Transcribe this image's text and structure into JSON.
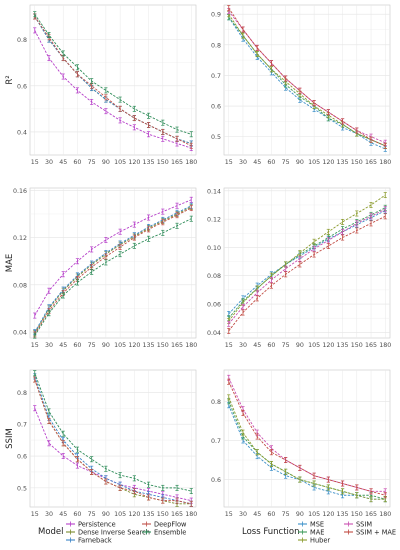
{
  "colors": {
    "Persistence": "#b63fc9",
    "Dense Inverse Search": "#7a8b2d",
    "Farneback": "#3a83c7",
    "DeepFlow": "#c0514a",
    "Ensemble": "#2f8c59",
    "MSE": "#3a8fc8",
    "MAE": "#3d9a5a",
    "Huber": "#8a9a2c",
    "SSIM": "#c94fb0",
    "SSIM + MAE": "#c14a42"
  },
  "legend": {
    "left_title": "Model",
    "left_items": [
      "Persistence",
      "Dense Inverse Search",
      "Farneback",
      "DeepFlow",
      "Ensemble"
    ],
    "right_title": "Loss Function",
    "right_items": [
      "MSE",
      "MAE",
      "Huber",
      "SSIM",
      "SSIM + MAE"
    ]
  },
  "chart_data": [
    {
      "type": "line",
      "panel": "r2-model",
      "ylabel": "R²",
      "ylim": [
        0.3,
        0.95
      ],
      "yticks": [
        "0.4",
        "0.6",
        "0.8"
      ],
      "ytick_values": [
        0.4,
        0.6,
        0.8
      ],
      "x": [
        15,
        30,
        45,
        60,
        75,
        90,
        105,
        120,
        135,
        150,
        165,
        180
      ],
      "xtick_labels": [
        "15",
        "30",
        "45",
        "60",
        "75",
        "90",
        "105",
        "120",
        "135",
        "150",
        "165",
        "180"
      ],
      "grid": true,
      "series": [
        {
          "name": "Persistence",
          "values": [
            0.84,
            0.72,
            0.64,
            0.58,
            0.53,
            0.49,
            0.45,
            0.42,
            0.39,
            0.37,
            0.35,
            0.33
          ]
        },
        {
          "name": "Dense Inverse Search",
          "values": [
            0.9,
            0.8,
            0.72,
            0.65,
            0.59,
            0.54,
            0.5,
            0.46,
            0.43,
            0.4,
            0.37,
            0.35
          ]
        },
        {
          "name": "Farneback",
          "values": [
            0.9,
            0.8,
            0.72,
            0.65,
            0.59,
            0.54,
            0.5,
            0.46,
            0.43,
            0.4,
            0.37,
            0.35
          ]
        },
        {
          "name": "DeepFlow",
          "values": [
            0.9,
            0.81,
            0.72,
            0.65,
            0.6,
            0.55,
            0.5,
            0.46,
            0.43,
            0.4,
            0.37,
            0.34
          ]
        },
        {
          "name": "Ensemble",
          "values": [
            0.91,
            0.82,
            0.74,
            0.68,
            0.62,
            0.58,
            0.54,
            0.5,
            0.47,
            0.44,
            0.41,
            0.39
          ]
        }
      ]
    },
    {
      "type": "line",
      "panel": "r2-loss",
      "ylabel": "",
      "ylim": [
        0.44,
        0.93
      ],
      "yticks": [
        "0.5",
        "0.6",
        "0.7",
        "0.8",
        "0.9"
      ],
      "ytick_values": [
        0.5,
        0.6,
        0.7,
        0.8,
        0.9
      ],
      "x": [
        15,
        30,
        45,
        60,
        75,
        90,
        105,
        120,
        135,
        150,
        165,
        180
      ],
      "xtick_labels": [
        "15",
        "30",
        "45",
        "60",
        "75",
        "90",
        "105",
        "120",
        "135",
        "150",
        "165",
        "180"
      ],
      "grid": true,
      "series": [
        {
          "name": "MSE",
          "values": [
            0.89,
            0.82,
            0.76,
            0.71,
            0.66,
            0.62,
            0.59,
            0.56,
            0.53,
            0.51,
            0.48,
            0.46
          ]
        },
        {
          "name": "MAE",
          "values": [
            0.89,
            0.83,
            0.77,
            0.72,
            0.67,
            0.63,
            0.6,
            0.56,
            0.54,
            0.51,
            0.49,
            0.47
          ]
        },
        {
          "name": "Huber",
          "values": [
            0.9,
            0.83,
            0.77,
            0.72,
            0.68,
            0.64,
            0.6,
            0.57,
            0.54,
            0.51,
            0.49,
            0.47
          ]
        },
        {
          "name": "SSIM",
          "values": [
            0.91,
            0.85,
            0.79,
            0.74,
            0.69,
            0.65,
            0.61,
            0.58,
            0.55,
            0.52,
            0.5,
            0.48
          ]
        },
        {
          "name": "SSIM + MAE",
          "values": [
            0.92,
            0.85,
            0.79,
            0.74,
            0.69,
            0.65,
            0.61,
            0.58,
            0.55,
            0.52,
            0.49,
            0.47
          ]
        }
      ]
    },
    {
      "type": "line",
      "panel": "mae-model",
      "ylabel": "MAE",
      "ylim": [
        0.035,
        0.162
      ],
      "yticks": [
        "0.04",
        "0.08",
        "0.12",
        "0.16"
      ],
      "ytick_values": [
        0.04,
        0.08,
        0.12,
        0.16
      ],
      "x": [
        15,
        30,
        45,
        60,
        75,
        90,
        105,
        120,
        135,
        150,
        165,
        180
      ],
      "xtick_labels": [
        "15",
        "30",
        "45",
        "60",
        "75",
        "90",
        "105",
        "120",
        "135",
        "150",
        "165",
        "180"
      ],
      "grid": true,
      "series": [
        {
          "name": "Persistence",
          "values": [
            0.054,
            0.075,
            0.089,
            0.1,
            0.11,
            0.118,
            0.125,
            0.131,
            0.137,
            0.142,
            0.147,
            0.152
          ]
        },
        {
          "name": "Dense Inverse Search",
          "values": [
            0.039,
            0.06,
            0.075,
            0.087,
            0.097,
            0.106,
            0.114,
            0.121,
            0.128,
            0.134,
            0.14,
            0.146
          ]
        },
        {
          "name": "Farneback",
          "values": [
            0.04,
            0.061,
            0.076,
            0.088,
            0.098,
            0.107,
            0.115,
            0.122,
            0.129,
            0.135,
            0.141,
            0.147
          ]
        },
        {
          "name": "DeepFlow",
          "values": [
            0.038,
            0.058,
            0.073,
            0.085,
            0.095,
            0.104,
            0.112,
            0.12,
            0.127,
            0.133,
            0.139,
            0.145
          ]
        },
        {
          "name": "Ensemble",
          "values": [
            0.037,
            0.056,
            0.071,
            0.082,
            0.091,
            0.099,
            0.106,
            0.113,
            0.119,
            0.124,
            0.13,
            0.136
          ]
        }
      ]
    },
    {
      "type": "line",
      "panel": "mae-loss",
      "ylabel": "",
      "ylim": [
        0.036,
        0.142
      ],
      "yticks": [
        "0.04",
        "0.06",
        "0.08",
        "0.10",
        "0.12",
        "0.14"
      ],
      "ytick_values": [
        0.04,
        0.06,
        0.08,
        0.1,
        0.12,
        0.14
      ],
      "x": [
        15,
        30,
        45,
        60,
        75,
        90,
        105,
        120,
        135,
        150,
        165,
        180
      ],
      "xtick_labels": [
        "15",
        "30",
        "45",
        "60",
        "75",
        "90",
        "105",
        "120",
        "135",
        "150",
        "165",
        "180"
      ],
      "grid": true,
      "series": [
        {
          "name": "MSE",
          "values": [
            0.053,
            0.064,
            0.073,
            0.081,
            0.088,
            0.094,
            0.1,
            0.106,
            0.111,
            0.116,
            0.121,
            0.126
          ]
        },
        {
          "name": "MAE",
          "values": [
            0.05,
            0.062,
            0.071,
            0.08,
            0.088,
            0.095,
            0.101,
            0.107,
            0.113,
            0.118,
            0.123,
            0.128
          ]
        },
        {
          "name": "Huber",
          "values": [
            0.048,
            0.061,
            0.071,
            0.08,
            0.088,
            0.096,
            0.104,
            0.111,
            0.118,
            0.124,
            0.13,
            0.137
          ]
        },
        {
          "name": "SSIM",
          "values": [
            0.046,
            0.058,
            0.068,
            0.077,
            0.085,
            0.092,
            0.099,
            0.105,
            0.111,
            0.117,
            0.122,
            0.127
          ]
        },
        {
          "name": "SSIM + MAE",
          "values": [
            0.041,
            0.054,
            0.064,
            0.073,
            0.081,
            0.088,
            0.095,
            0.101,
            0.107,
            0.112,
            0.117,
            0.122
          ]
        }
      ]
    },
    {
      "type": "line",
      "panel": "ssim-model",
      "ylabel": "SSIM",
      "ylim": [
        0.44,
        0.87
      ],
      "yticks": [
        "0.5",
        "0.6",
        "0.7",
        "0.8"
      ],
      "ytick_values": [
        0.5,
        0.6,
        0.7,
        0.8
      ],
      "x": [
        15,
        30,
        45,
        60,
        75,
        90,
        105,
        120,
        135,
        150,
        165,
        180
      ],
      "xtick_labels": [
        "15",
        "30",
        "45",
        "60",
        "75",
        "90",
        "105",
        "120",
        "135",
        "150",
        "165",
        "180"
      ],
      "grid": true,
      "series": [
        {
          "name": "Persistence",
          "values": [
            0.75,
            0.64,
            0.6,
            0.57,
            0.55,
            0.53,
            0.51,
            0.5,
            0.49,
            0.48,
            0.47,
            0.46
          ]
        },
        {
          "name": "Dense Inverse Search",
          "values": [
            0.84,
            0.71,
            0.64,
            0.59,
            0.55,
            0.52,
            0.5,
            0.48,
            0.47,
            0.46,
            0.45,
            0.45
          ]
        },
        {
          "name": "Farneback",
          "values": [
            0.85,
            0.72,
            0.65,
            0.6,
            0.56,
            0.53,
            0.51,
            0.49,
            0.48,
            0.47,
            0.46,
            0.45
          ]
        },
        {
          "name": "DeepFlow",
          "values": [
            0.84,
            0.71,
            0.64,
            0.59,
            0.55,
            0.52,
            0.5,
            0.49,
            0.47,
            0.46,
            0.46,
            0.45
          ]
        },
        {
          "name": "Ensemble",
          "values": [
            0.86,
            0.74,
            0.67,
            0.62,
            0.59,
            0.56,
            0.54,
            0.53,
            0.51,
            0.5,
            0.5,
            0.49
          ]
        }
      ]
    },
    {
      "type": "line",
      "panel": "ssim-loss",
      "ylabel": "",
      "ylim": [
        0.53,
        0.88
      ],
      "yticks": [
        "0.6",
        "0.7",
        "0.8"
      ],
      "ytick_values": [
        0.6,
        0.7,
        0.8
      ],
      "x": [
        15,
        30,
        45,
        60,
        75,
        90,
        105,
        120,
        135,
        150,
        165,
        180
      ],
      "xtick_labels": [
        "15",
        "30",
        "45",
        "60",
        "75",
        "90",
        "105",
        "120",
        "135",
        "150",
        "165",
        "180"
      ],
      "grid": true,
      "series": [
        {
          "name": "MSE",
          "values": [
            0.79,
            0.7,
            0.66,
            0.63,
            0.61,
            0.6,
            0.58,
            0.57,
            0.56,
            0.56,
            0.55,
            0.55
          ]
        },
        {
          "name": "MAE",
          "values": [
            0.8,
            0.71,
            0.67,
            0.64,
            0.62,
            0.6,
            0.59,
            0.58,
            0.57,
            0.56,
            0.56,
            0.55
          ]
        },
        {
          "name": "Huber",
          "values": [
            0.81,
            0.72,
            0.67,
            0.64,
            0.62,
            0.6,
            0.59,
            0.58,
            0.57,
            0.56,
            0.55,
            0.55
          ]
        },
        {
          "name": "SSIM",
          "values": [
            0.86,
            0.78,
            0.72,
            0.68,
            0.65,
            0.63,
            0.61,
            0.6,
            0.59,
            0.58,
            0.57,
            0.57
          ]
        },
        {
          "name": "SSIM + MAE",
          "values": [
            0.85,
            0.77,
            0.71,
            0.67,
            0.65,
            0.63,
            0.61,
            0.6,
            0.59,
            0.58,
            0.57,
            0.56
          ]
        }
      ]
    }
  ]
}
